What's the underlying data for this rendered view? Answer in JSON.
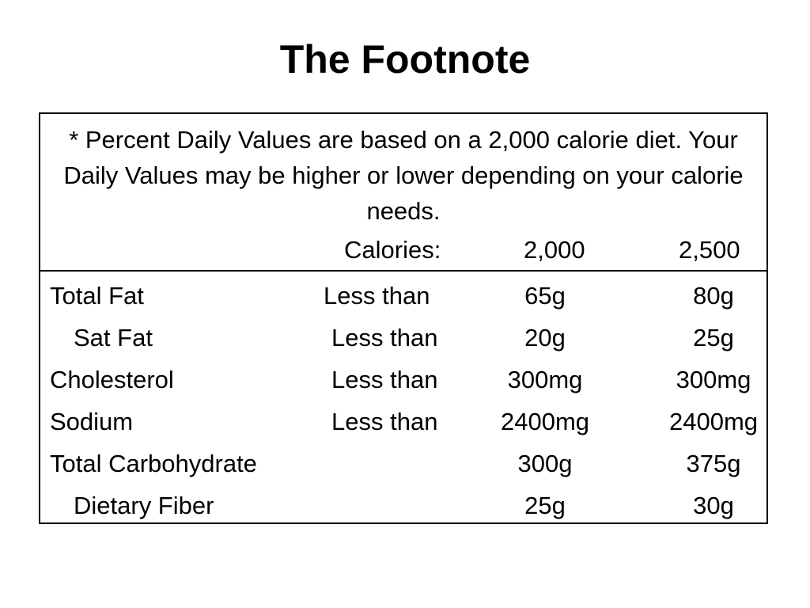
{
  "title": "The Footnote",
  "footnote": {
    "text": "* Percent Daily Values are based on a 2,000 calorie diet. Your Daily Values may be higher or lower depending on your calorie needs.",
    "calories_label": "Calories:",
    "calories_2000": "2,000",
    "calories_2500": "2,500"
  },
  "rows": [
    {
      "name": "Total Fat",
      "limit": "Less than",
      "v2000": "65g",
      "v2500": "80g"
    },
    {
      "name": "Sat Fat",
      "limit": "Less than",
      "v2000": "20g",
      "v2500": "25g"
    },
    {
      "name": "Cholesterol",
      "limit": "Less than",
      "v2000": "300mg",
      "v2500": "300mg"
    },
    {
      "name": "Sodium",
      "limit": "Less than",
      "v2000": "2400mg",
      "v2500": "2400mg"
    },
    {
      "name": "Total Carbohydrate",
      "limit": "",
      "v2000": "300g",
      "v2500": "375g"
    },
    {
      "name": "Dietary Fiber",
      "limit": "",
      "v2000": "25g",
      "v2500": "30g"
    }
  ]
}
